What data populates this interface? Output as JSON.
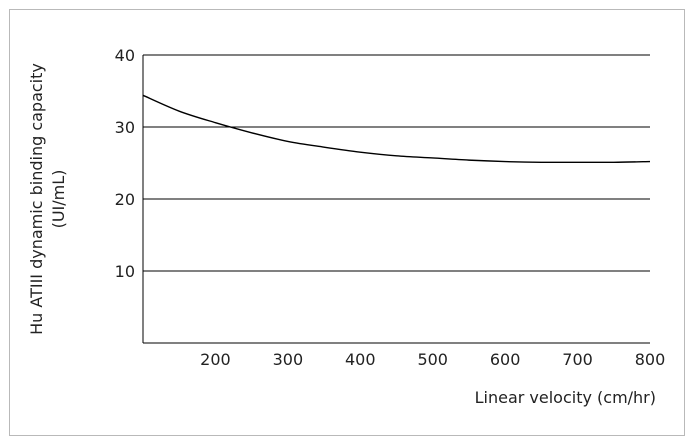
{
  "chart_data": {
    "type": "line",
    "title": "",
    "xlabel": "Linear velocity (cm/hr)",
    "ylabel_lines": [
      "Hu ATIII dynamic binding capacity",
      "(UI/mL)"
    ],
    "xlim": [
      100,
      800
    ],
    "ylim": [
      0,
      40
    ],
    "xticks": [
      200,
      300,
      400,
      500,
      600,
      700,
      800
    ],
    "yticks": [
      10,
      20,
      30,
      40
    ],
    "grid": "horizontal",
    "legend": "none",
    "line_color": "#000000",
    "series": [
      {
        "x": [
          100,
          150,
          200,
          250,
          300,
          350,
          400,
          450,
          500,
          550,
          600,
          650,
          700,
          750,
          800
        ],
        "y": [
          34.4,
          32.2,
          30.6,
          29.2,
          28.0,
          27.2,
          26.5,
          26.0,
          25.7,
          25.4,
          25.2,
          25.1,
          25.1,
          25.1,
          25.2
        ]
      }
    ]
  }
}
